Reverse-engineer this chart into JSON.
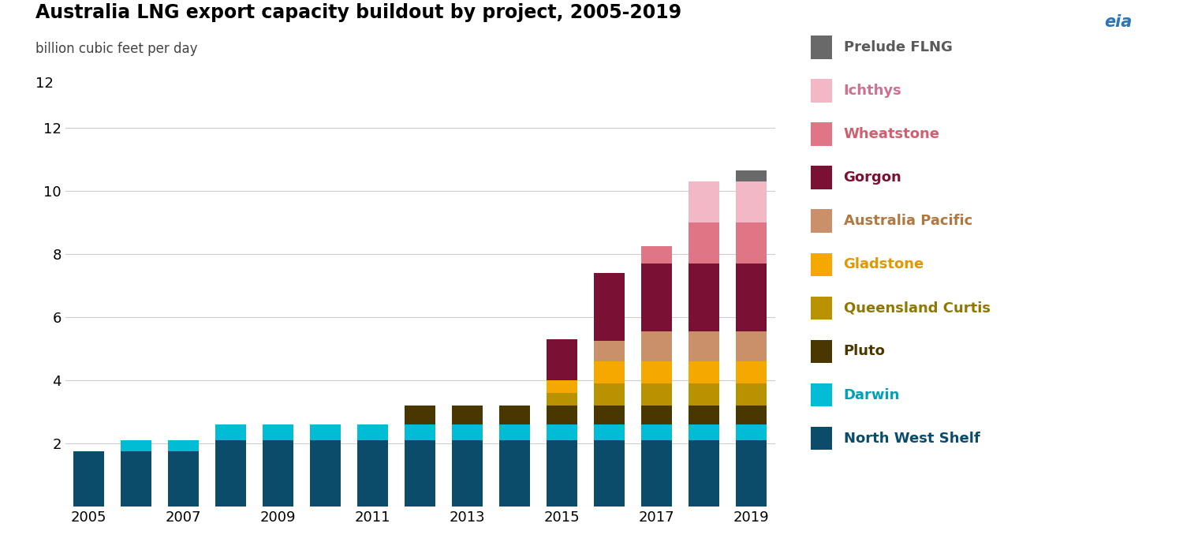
{
  "title": "Australia LNG export capacity buildout by project, 2005-2019",
  "subtitle": "billion cubic feet per day",
  "years": [
    2005,
    2006,
    2007,
    2008,
    2009,
    2010,
    2011,
    2012,
    2013,
    2014,
    2015,
    2016,
    2017,
    2018,
    2019
  ],
  "series": [
    {
      "name": "North West Shelf",
      "color": "#0a4c6a",
      "values": [
        1.75,
        1.75,
        1.75,
        2.1,
        2.1,
        2.1,
        2.1,
        2.1,
        2.1,
        2.1,
        2.1,
        2.1,
        2.1,
        2.1,
        2.1
      ]
    },
    {
      "name": "Darwin",
      "color": "#00bcd4",
      "values": [
        0.0,
        0.37,
        0.37,
        0.5,
        0.5,
        0.5,
        0.5,
        0.5,
        0.5,
        0.5,
        0.5,
        0.5,
        0.5,
        0.5,
        0.5
      ]
    },
    {
      "name": "Pluto",
      "color": "#4a3700",
      "values": [
        0.0,
        0.0,
        0.0,
        0.0,
        0.0,
        0.0,
        0.0,
        0.6,
        0.6,
        0.6,
        0.6,
        0.6,
        0.6,
        0.6,
        0.6
      ]
    },
    {
      "name": "Queensland Curtis",
      "color": "#b89200",
      "values": [
        0.0,
        0.0,
        0.0,
        0.0,
        0.0,
        0.0,
        0.0,
        0.0,
        0.0,
        0.0,
        0.4,
        0.7,
        0.7,
        0.7,
        0.7
      ]
    },
    {
      "name": "Gladstone",
      "color": "#f5a800",
      "values": [
        0.0,
        0.0,
        0.0,
        0.0,
        0.0,
        0.0,
        0.0,
        0.0,
        0.0,
        0.0,
        0.4,
        0.7,
        0.7,
        0.7,
        0.7
      ]
    },
    {
      "name": "Australia Pacific",
      "color": "#c9906a",
      "values": [
        0.0,
        0.0,
        0.0,
        0.0,
        0.0,
        0.0,
        0.0,
        0.0,
        0.0,
        0.0,
        0.0,
        0.65,
        0.95,
        0.95,
        0.95
      ]
    },
    {
      "name": "Gorgon",
      "color": "#7b1035",
      "values": [
        0.0,
        0.0,
        0.0,
        0.0,
        0.0,
        0.0,
        0.0,
        0.0,
        0.0,
        0.0,
        1.3,
        2.15,
        2.15,
        2.15,
        2.15
      ]
    },
    {
      "name": "Wheatstone",
      "color": "#e07585",
      "values": [
        0.0,
        0.0,
        0.0,
        0.0,
        0.0,
        0.0,
        0.0,
        0.0,
        0.0,
        0.0,
        0.0,
        0.0,
        0.55,
        1.3,
        1.3
      ]
    },
    {
      "name": "Ichthys",
      "color": "#f2b8c6",
      "values": [
        0.0,
        0.0,
        0.0,
        0.0,
        0.0,
        0.0,
        0.0,
        0.0,
        0.0,
        0.0,
        0.0,
        0.0,
        0.0,
        1.3,
        1.3
      ]
    },
    {
      "name": "Prelude FLNG",
      "color": "#696969",
      "values": [
        0.0,
        0.0,
        0.0,
        0.0,
        0.0,
        0.0,
        0.0,
        0.0,
        0.0,
        0.0,
        0.0,
        0.0,
        0.0,
        0.0,
        0.35
      ]
    }
  ],
  "ylim": [
    0,
    12
  ],
  "yticks": [
    0,
    2,
    4,
    6,
    8,
    10,
    12
  ],
  "background_color": "#ffffff",
  "legend_items": [
    {
      "name": "Prelude FLNG",
      "bar_color": "#696969",
      "text_color": "#5a5a5a"
    },
    {
      "name": "Ichthys",
      "bar_color": "#f2b8c6",
      "text_color": "#d07090"
    },
    {
      "name": "Wheatstone",
      "bar_color": "#e07585",
      "text_color": "#d06070"
    },
    {
      "name": "Gorgon",
      "bar_color": "#7b1035",
      "text_color": "#7b1035"
    },
    {
      "name": "Australia Pacific",
      "bar_color": "#c9906a",
      "text_color": "#b07840"
    },
    {
      "name": "Gladstone",
      "bar_color": "#f5a800",
      "text_color": "#e09800"
    },
    {
      "name": "Queensland Curtis",
      "bar_color": "#b89200",
      "text_color": "#907800"
    },
    {
      "name": "Pluto",
      "bar_color": "#4a3700",
      "text_color": "#4a3700"
    },
    {
      "name": "Darwin",
      "bar_color": "#00bcd4",
      "text_color": "#00a0b8"
    },
    {
      "name": "North West Shelf",
      "bar_color": "#0a4c6a",
      "text_color": "#0a4c6a"
    }
  ]
}
